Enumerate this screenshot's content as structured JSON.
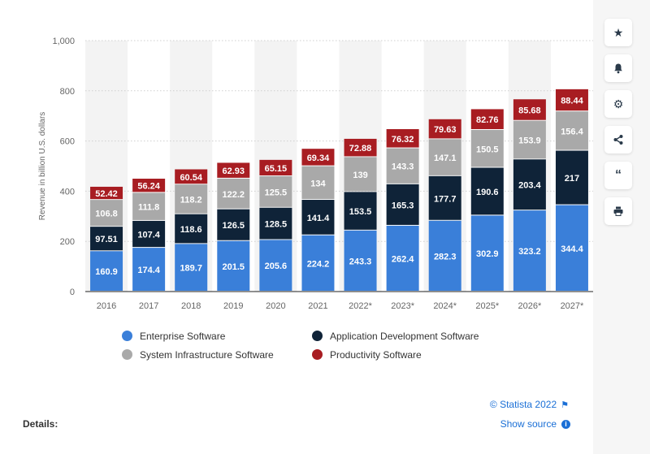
{
  "chart_data": {
    "type": "stacked-bar",
    "categories": [
      "2016",
      "2017",
      "2018",
      "2019",
      "2020",
      "2021",
      "2022*",
      "2023*",
      "2024*",
      "2025*",
      "2026*",
      "2027*"
    ],
    "series": [
      {
        "name": "Enterprise Software",
        "color": "#3a7fd9",
        "values": [
          160.9,
          174.4,
          189.7,
          201.5,
          205.6,
          224.2,
          243.3,
          262.4,
          282.3,
          302.9,
          323.2,
          344.4
        ]
      },
      {
        "name": "Application Development Software",
        "color": "#0f2338",
        "values": [
          97.51,
          107.4,
          118.6,
          126.5,
          128.5,
          141.4,
          153.5,
          165.3,
          177.7,
          190.6,
          203.4,
          217
        ]
      },
      {
        "name": "System Infrastructure Software",
        "color": "#a9a9a9",
        "values": [
          106.8,
          111.8,
          118.2,
          122.2,
          125.5,
          134,
          139,
          143.3,
          147.1,
          150.5,
          153.9,
          156.4
        ]
      },
      {
        "name": "Productivity Software",
        "color": "#a81d22",
        "values": [
          52.42,
          56.24,
          60.54,
          62.93,
          65.15,
          69.34,
          72.88,
          76.32,
          79.63,
          82.76,
          85.68,
          88.44
        ]
      }
    ],
    "data_labels": [
      [
        "160.9",
        "174.4",
        "189.7",
        "201.5",
        "205.6",
        "224.2",
        "243.3",
        "262.4",
        "282.3",
        "302.9",
        "323.2",
        "344.4"
      ],
      [
        "97.51",
        "107.4",
        "118.6",
        "126.5",
        "128.5",
        "141.4",
        "153.5",
        "165.3",
        "177.7",
        "190.6",
        "203.4",
        "217"
      ],
      [
        "106.8",
        "111.8",
        "118.2",
        "122.2",
        "125.5",
        "134",
        "139",
        "143.3",
        "147.1",
        "150.5",
        "153.9",
        "156.4"
      ],
      [
        "52.42",
        "56.24",
        "60.54",
        "62.93",
        "65.15",
        "69.34",
        "72.88",
        "76.32",
        "79.63",
        "82.76",
        "85.68",
        "88.44"
      ]
    ],
    "ylabel": "Revenue in billion U.S. dollars",
    "xlabel": "",
    "ylim": [
      0,
      1000
    ],
    "yticks": [
      0,
      200,
      400,
      600,
      800,
      1000
    ],
    "ytick_labels": [
      "0",
      "200",
      "400",
      "600",
      "800",
      "1,000"
    ],
    "grid": true,
    "legend_position": "bottom"
  },
  "footer": {
    "credit": "© Statista 2022",
    "details": "Details:",
    "show_source": "Show source"
  },
  "toolbar": {
    "icons": [
      "star-icon",
      "bell-icon",
      "gear-icon",
      "share-icon",
      "quote-icon",
      "print-icon"
    ]
  }
}
